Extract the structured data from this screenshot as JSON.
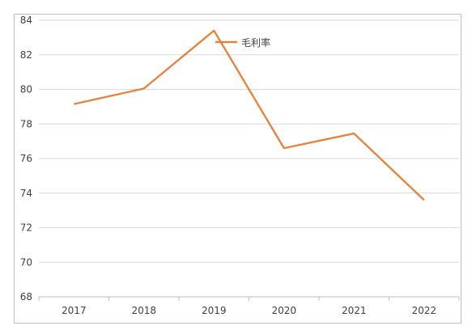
{
  "chart_data": {
    "type": "line",
    "categories": [
      "2017",
      "2018",
      "2019",
      "2020",
      "2021",
      "2022"
    ],
    "series": [
      {
        "name": "毛利率",
        "values": [
          79.15,
          80.05,
          83.4,
          76.6,
          77.45,
          73.6
        ],
        "color": "#ED7D31"
      }
    ],
    "ylim": [
      68,
      84
    ],
    "yticks": [
      68,
      70,
      72,
      74,
      76,
      78,
      80,
      82,
      84
    ],
    "grid": true,
    "legend": "top-center",
    "title": "",
    "xlabel": "",
    "ylabel": ""
  }
}
